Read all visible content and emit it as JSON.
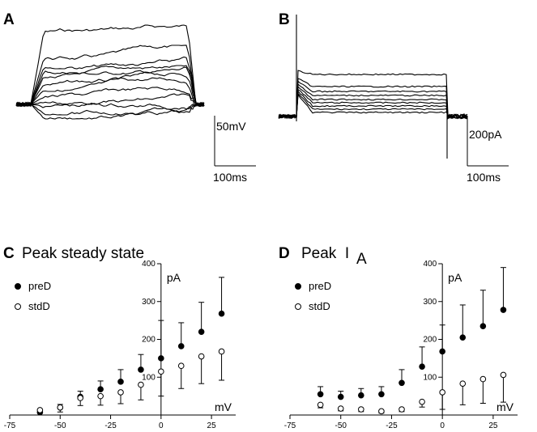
{
  "panels": {
    "A": {
      "label": "A",
      "scale_v": "50mV",
      "scale_t": "100ms"
    },
    "B": {
      "label": "B",
      "scale_v": "200pA",
      "scale_t": "100ms"
    }
  },
  "chart_data": [
    {
      "type": "scatter",
      "panel": "C",
      "title": "Peak steady state",
      "title_sub": "",
      "xlabel": "mV",
      "ylabel": "pA",
      "xlim": [
        -75,
        37
      ],
      "ylim": [
        0,
        400
      ],
      "xticks": [
        -75,
        -50,
        -25,
        0,
        25
      ],
      "yticks": [
        100,
        200,
        300,
        400
      ],
      "x": [
        -60,
        -50,
        -40,
        -30,
        -20,
        -10,
        0,
        10,
        20,
        30
      ],
      "series": [
        {
          "name": "preD",
          "marker": "filled",
          "values": [
            7,
            20,
            48,
            68,
            88,
            120,
            150,
            182,
            220,
            268
          ],
          "err_up": [
            8,
            8,
            15,
            22,
            32,
            40,
            100,
            62,
            78,
            96
          ]
        },
        {
          "name": "stdD",
          "marker": "open",
          "values": [
            13,
            20,
            45,
            50,
            60,
            80,
            115,
            130,
            155,
            168
          ],
          "err_down": [
            8,
            12,
            20,
            24,
            30,
            40,
            65,
            60,
            72,
            76
          ]
        }
      ],
      "legend_position": "top-left"
    },
    {
      "type": "scatter",
      "panel": "D",
      "title": "Peak  I",
      "title_sub": "A",
      "xlabel": "mV",
      "ylabel": "pA",
      "xlim": [
        -75,
        37
      ],
      "ylim": [
        0,
        400
      ],
      "xticks": [
        -75,
        -50,
        -25,
        0,
        25
      ],
      "yticks": [
        100,
        200,
        300,
        400
      ],
      "x": [
        -60,
        -50,
        -40,
        -30,
        -20,
        -10,
        0,
        10,
        20,
        30
      ],
      "series": [
        {
          "name": "preD",
          "marker": "filled",
          "values": [
            55,
            48,
            52,
            55,
            85,
            128,
            168,
            205,
            235,
            278
          ],
          "err_up": [
            20,
            15,
            18,
            20,
            35,
            52,
            70,
            86,
            95,
            112
          ]
        },
        {
          "name": "stdD",
          "marker": "open",
          "values": [
            27,
            17,
            15,
            10,
            15,
            35,
            60,
            83,
            95,
            106
          ],
          "err_down": [
            8,
            6,
            6,
            5,
            6,
            14,
            45,
            56,
            64,
            72
          ]
        }
      ],
      "legend_position": "top-left"
    }
  ]
}
